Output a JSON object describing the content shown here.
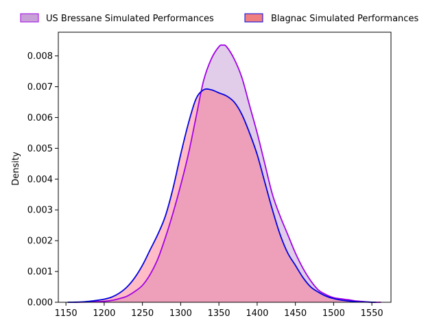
{
  "chart_data": {
    "type": "area",
    "subtype": "kde",
    "title": "",
    "xlabel": "",
    "ylabel": "Density",
    "xlim": [
      1140,
      1575
    ],
    "ylim": [
      0,
      0.00877
    ],
    "x_ticks": [
      1150,
      1200,
      1250,
      1300,
      1350,
      1400,
      1450,
      1500,
      1550
    ],
    "x_tick_labels": [
      "1150",
      "1200",
      "1250",
      "1300",
      "1350",
      "1400",
      "1450",
      "1500",
      "1550"
    ],
    "y_ticks": [
      0,
      0.001,
      0.002,
      0.003,
      0.004,
      0.005,
      0.006,
      0.007,
      0.008
    ],
    "y_tick_labels": [
      "0.000",
      "0.001",
      "0.002",
      "0.003",
      "0.004",
      "0.005",
      "0.006",
      "0.007",
      "0.008"
    ],
    "grid": false,
    "legend_position": "top, above plot, horizontal",
    "series": [
      {
        "name": "US Bressane Simulated Performances",
        "line_color": "#a000e6",
        "fill_color": "#9b59b6",
        "fill_opacity": 0.3,
        "legend_swatch_color": "#c8a2d6",
        "points": [
          [
            1160,
            0.0
          ],
          [
            1180,
            1e-05
          ],
          [
            1200,
            3e-05
          ],
          [
            1210,
            6e-05
          ],
          [
            1220,
            0.00012
          ],
          [
            1230,
            0.0002
          ],
          [
            1240,
            0.00035
          ],
          [
            1250,
            0.00055
          ],
          [
            1260,
            0.0009
          ],
          [
            1270,
            0.0014
          ],
          [
            1280,
            0.0021
          ],
          [
            1290,
            0.0029
          ],
          [
            1300,
            0.0038
          ],
          [
            1310,
            0.0048
          ],
          [
            1320,
            0.006
          ],
          [
            1330,
            0.0072
          ],
          [
            1340,
            0.0079
          ],
          [
            1350,
            0.0083
          ],
          [
            1355,
            0.00835
          ],
          [
            1360,
            0.0083
          ],
          [
            1370,
            0.0079
          ],
          [
            1380,
            0.0073
          ],
          [
            1390,
            0.0064
          ],
          [
            1400,
            0.0055
          ],
          [
            1410,
            0.0045
          ],
          [
            1420,
            0.0035
          ],
          [
            1430,
            0.0028
          ],
          [
            1440,
            0.0022
          ],
          [
            1450,
            0.0016
          ],
          [
            1460,
            0.0011
          ],
          [
            1470,
            0.0007
          ],
          [
            1480,
            0.0004
          ],
          [
            1490,
            0.00025
          ],
          [
            1500,
            0.00015
          ],
          [
            1510,
            0.00011
          ],
          [
            1520,
            8e-05
          ],
          [
            1530,
            4e-05
          ],
          [
            1540,
            2e-05
          ],
          [
            1550,
            0.0
          ],
          [
            1562,
            0.0
          ]
        ]
      },
      {
        "name": "Blagnac Simulated Performances",
        "line_color": "#0000e0",
        "fill_color": "#ff6b81",
        "fill_opacity": 0.45,
        "legend_swatch_color": "#f08080",
        "points": [
          [
            1152,
            0.0
          ],
          [
            1170,
            1e-05
          ],
          [
            1180,
            3e-05
          ],
          [
            1190,
            6e-05
          ],
          [
            1200,
            0.0001
          ],
          [
            1210,
            0.00017
          ],
          [
            1220,
            0.0003
          ],
          [
            1230,
            0.0005
          ],
          [
            1240,
            0.0008
          ],
          [
            1250,
            0.0012
          ],
          [
            1260,
            0.0017
          ],
          [
            1270,
            0.0022
          ],
          [
            1280,
            0.0028
          ],
          [
            1290,
            0.0037
          ],
          [
            1300,
            0.0048
          ],
          [
            1310,
            0.0058
          ],
          [
            1320,
            0.0066
          ],
          [
            1330,
            0.0069
          ],
          [
            1340,
            0.0069
          ],
          [
            1350,
            0.0068
          ],
          [
            1360,
            0.0067
          ],
          [
            1370,
            0.0065
          ],
          [
            1380,
            0.0061
          ],
          [
            1390,
            0.0055
          ],
          [
            1400,
            0.0048
          ],
          [
            1410,
            0.0039
          ],
          [
            1420,
            0.003
          ],
          [
            1430,
            0.0022
          ],
          [
            1440,
            0.0016
          ],
          [
            1450,
            0.0012
          ],
          [
            1460,
            0.0008
          ],
          [
            1470,
            0.0005
          ],
          [
            1480,
            0.00033
          ],
          [
            1490,
            0.0002
          ],
          [
            1500,
            0.00012
          ],
          [
            1510,
            7e-05
          ],
          [
            1520,
            4e-05
          ],
          [
            1530,
            2e-05
          ],
          [
            1540,
            1e-05
          ],
          [
            1555,
            0.0
          ]
        ]
      }
    ]
  }
}
